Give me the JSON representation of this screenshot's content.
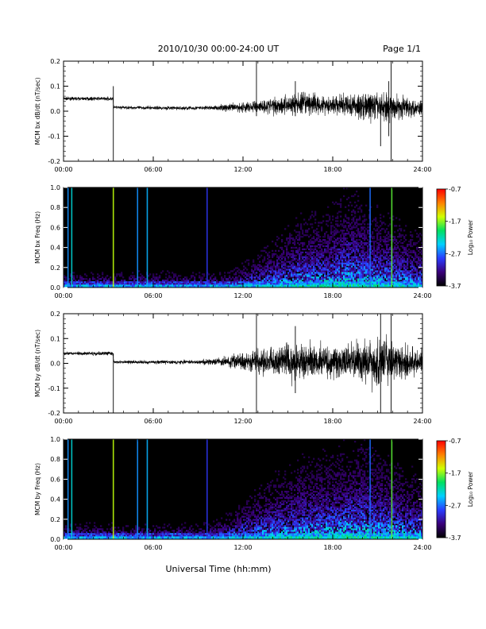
{
  "header": {
    "title": "2010/10/30  00:00-24:00 UT",
    "page": "Page 1/1"
  },
  "xaxis": {
    "label": "Universal Time (hh:mm)",
    "ticks": [
      "00:00",
      "06:00",
      "12:00",
      "18:00",
      "24:00"
    ],
    "range_hours": [
      0,
      24
    ]
  },
  "colorbar": {
    "label": "Log₁₀ Power",
    "ticks": [
      "-0.7",
      "-1.7",
      "-2.7",
      "-3.7"
    ],
    "range": [
      -3.7,
      -0.7
    ],
    "colors": [
      "#000000",
      "#3a007a",
      "#2a3cff",
      "#00d0ff",
      "#00e060",
      "#d0ff00",
      "#ff8000",
      "#ff0000"
    ]
  },
  "chart_data": [
    {
      "type": "line",
      "ylabel": "MCM bx dB/dt (nT/sec)",
      "ylim": [
        -0.2,
        0.2
      ],
      "yticks": [
        "0.2",
        "0.1",
        "0.0",
        "-0.1",
        "-0.2"
      ],
      "grid": false,
      "color": "#000000",
      "baseline": [
        [
          0,
          0.05
        ],
        [
          3.3,
          0.05
        ],
        [
          3.35,
          0.015
        ],
        [
          8,
          0.012
        ],
        [
          12,
          0.015
        ],
        [
          16,
          0.03
        ],
        [
          20,
          0.02
        ],
        [
          24,
          0.015
        ]
      ],
      "noise_amplitude": [
        [
          0,
          0.006
        ],
        [
          3.3,
          0.007
        ],
        [
          3.4,
          0.006
        ],
        [
          10,
          0.008
        ],
        [
          11,
          0.015
        ],
        [
          13,
          0.025
        ],
        [
          15,
          0.04
        ],
        [
          16,
          0.045
        ],
        [
          18,
          0.035
        ],
        [
          20,
          0.055
        ],
        [
          22,
          0.05
        ],
        [
          24,
          0.03
        ]
      ],
      "spikes": [
        {
          "x": 3.33,
          "ymin": -0.2,
          "ymax": 0.1
        },
        {
          "x": 12.9,
          "ymin": -0.02,
          "ymax": 0.2
        },
        {
          "x": 15.5,
          "ymin": -0.02,
          "ymax": 0.12
        },
        {
          "x": 21.2,
          "ymin": -0.14,
          "ymax": 0.03
        },
        {
          "x": 21.75,
          "ymin": -0.1,
          "ymax": 0.12
        },
        {
          "x": 21.9,
          "ymin": -0.2,
          "ymax": 0.2
        }
      ]
    },
    {
      "type": "heatmap",
      "ylabel": "MCM bx Freq (Hz)",
      "ylim": [
        0,
        1
      ],
      "yticks": [
        "1.0",
        "0.8",
        "0.6",
        "0.4",
        "0.2",
        "0.0"
      ],
      "zrange": [
        -3.7,
        -0.7
      ],
      "activity": [
        [
          0,
          0.03
        ],
        [
          10,
          0.05
        ],
        [
          11.5,
          0.12
        ],
        [
          13,
          0.2
        ],
        [
          15,
          0.35
        ],
        [
          16,
          0.4
        ],
        [
          18,
          0.45
        ],
        [
          19,
          0.55
        ],
        [
          20,
          0.5
        ],
        [
          22,
          0.4
        ],
        [
          24,
          0.3
        ]
      ],
      "vertical_lines": [
        {
          "x": 0.3,
          "value": -2.6
        },
        {
          "x": 0.55,
          "value": -2.3
        },
        {
          "x": 3.33,
          "value": -1.6
        },
        {
          "x": 4.95,
          "value": -2.6
        },
        {
          "x": 5.6,
          "value": -2.5
        },
        {
          "x": 9.6,
          "value": -2.9
        },
        {
          "x": 20.5,
          "value": -2.7
        },
        {
          "x": 21.95,
          "value": -1.8
        }
      ]
    },
    {
      "type": "line",
      "ylabel": "MCM by dB/dt (nT/sec)",
      "ylim": [
        -0.2,
        0.2
      ],
      "yticks": [
        "0.2",
        "0.1",
        "0.0",
        "-0.1",
        "-0.2"
      ],
      "grid": false,
      "color": "#000000",
      "baseline": [
        [
          0,
          0.04
        ],
        [
          3.3,
          0.04
        ],
        [
          3.35,
          0.005
        ],
        [
          10,
          0.005
        ],
        [
          12,
          0.01
        ],
        [
          24,
          0.005
        ]
      ],
      "noise_amplitude": [
        [
          0,
          0.006
        ],
        [
          3.3,
          0.008
        ],
        [
          3.4,
          0.006
        ],
        [
          9,
          0.008
        ],
        [
          11,
          0.02
        ],
        [
          13,
          0.04
        ],
        [
          15,
          0.07
        ],
        [
          16,
          0.07
        ],
        [
          18,
          0.06
        ],
        [
          20,
          0.08
        ],
        [
          21,
          0.1
        ],
        [
          22,
          0.08
        ],
        [
          24,
          0.04
        ]
      ],
      "spikes": [
        {
          "x": 3.33,
          "ymin": -0.2,
          "ymax": 0.04
        },
        {
          "x": 12.9,
          "ymin": -0.2,
          "ymax": 0.2
        },
        {
          "x": 15.5,
          "ymin": -0.12,
          "ymax": 0.15
        },
        {
          "x": 21.2,
          "ymin": -0.2,
          "ymax": 0.2
        },
        {
          "x": 21.9,
          "ymin": -0.2,
          "ymax": 0.2
        }
      ]
    },
    {
      "type": "heatmap",
      "ylabel": "MCM by Freq (Hz)",
      "ylim": [
        0,
        1
      ],
      "yticks": [
        "1.0",
        "0.8",
        "0.6",
        "0.4",
        "0.2",
        "0.0"
      ],
      "zrange": [
        -3.7,
        -0.7
      ],
      "activity": [
        [
          0,
          0.04
        ],
        [
          9,
          0.06
        ],
        [
          11,
          0.15
        ],
        [
          13,
          0.3
        ],
        [
          15,
          0.4
        ],
        [
          16,
          0.45
        ],
        [
          18,
          0.5
        ],
        [
          20,
          0.55
        ],
        [
          22,
          0.45
        ],
        [
          24,
          0.35
        ]
      ],
      "vertical_lines": [
        {
          "x": 0.3,
          "value": -2.6
        },
        {
          "x": 0.55,
          "value": -2.3
        },
        {
          "x": 3.33,
          "value": -1.6
        },
        {
          "x": 4.95,
          "value": -2.6
        },
        {
          "x": 5.6,
          "value": -2.5
        },
        {
          "x": 9.6,
          "value": -2.9
        },
        {
          "x": 20.5,
          "value": -2.7
        },
        {
          "x": 21.95,
          "value": -1.8
        }
      ]
    }
  ]
}
